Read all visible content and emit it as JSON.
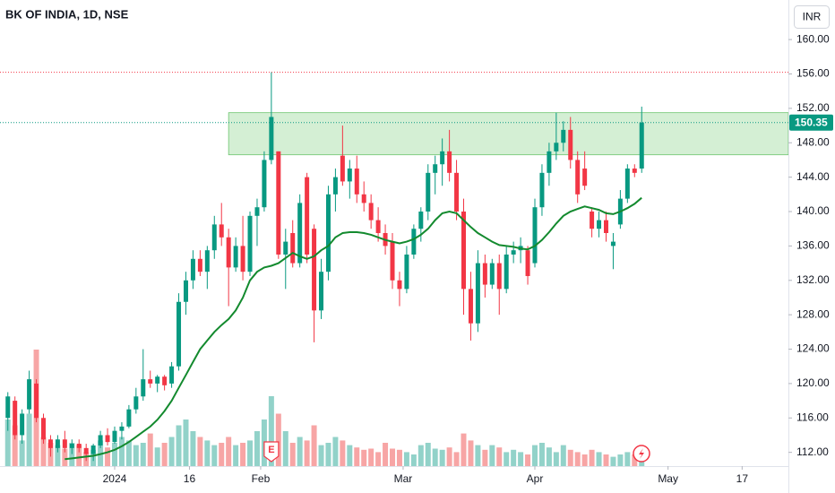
{
  "chart_data": {
    "type": "candlestick",
    "title": "BK OF INDIA, 1D, NSE",
    "currency": "INR",
    "ylim": [
      110.4,
      164.6
    ],
    "yticks": [
      {
        "value": 112,
        "label": "112.00"
      },
      {
        "value": 116,
        "label": "116.00"
      },
      {
        "value": 120,
        "label": "120.00"
      },
      {
        "value": 124,
        "label": "124.00"
      },
      {
        "value": 128,
        "label": "128.00"
      },
      {
        "value": 132,
        "label": "132.00"
      },
      {
        "value": 136,
        "label": "136.00"
      },
      {
        "value": 140,
        "label": "140.00"
      },
      {
        "value": 144,
        "label": "144.00"
      },
      {
        "value": 148,
        "label": "148.00"
      },
      {
        "value": 152,
        "label": "152.00"
      },
      {
        "value": 156,
        "label": "156.00"
      },
      {
        "value": 160,
        "label": "160.00"
      }
    ],
    "xlim": [
      -1.1,
      109.6
    ],
    "xticks": [
      {
        "value": 15,
        "label": "2024"
      },
      {
        "value": 25.5,
        "label": "16"
      },
      {
        "value": 35.5,
        "label": "Feb"
      },
      {
        "value": 55.5,
        "label": "Mar"
      },
      {
        "value": 74,
        "label": "Apr"
      },
      {
        "value": 92.7,
        "label": "May"
      },
      {
        "value": 103.1,
        "label": "17"
      }
    ],
    "grid": false,
    "up_color": "#089981",
    "down_color": "#f23645",
    "volume_up_color": "#92d2c9",
    "volume_down_color": "#f7a5a5",
    "ma_color": "#138a2e",
    "zone_color": "#b7e4b8",
    "open": [
      116,
      118,
      114,
      117,
      120,
      116,
      113.5,
      112.5,
      113.5,
      112.5,
      113,
      112.5,
      111.8,
      112.8,
      114,
      113.2,
      114.5,
      115,
      117,
      118.5,
      120.5,
      120,
      120.8,
      120,
      122,
      129.5,
      132,
      134.5,
      133,
      135.5,
      138.5,
      137,
      133.5,
      136,
      133,
      139.5,
      140.5,
      146,
      147,
      135,
      137.5,
      134,
      144,
      138,
      128.5,
      133,
      142,
      146.5,
      143.5,
      145,
      142,
      141,
      139,
      137.5,
      136.5,
      132,
      131,
      135,
      138,
      140,
      144.5,
      145.5,
      147,
      144.5,
      140,
      131,
      127,
      134,
      131.5,
      134,
      131,
      135,
      135.5,
      135.5,
      134,
      140.5,
      144.5,
      147,
      148,
      149.5,
      146,
      145,
      140,
      138,
      139,
      136,
      138.5,
      141.5,
      145,
      145
    ],
    "high": [
      119,
      118.5,
      117,
      121.5,
      120.5,
      116.5,
      114,
      114,
      114.5,
      113.5,
      113.5,
      113,
      113,
      114.5,
      114.8,
      115,
      115.5,
      117.5,
      119.5,
      124,
      121.5,
      121,
      121,
      122.5,
      130.5,
      133,
      135.5,
      135.5,
      136,
      139.5,
      141,
      138,
      137,
      139.5,
      140,
      141.5,
      147,
      156.2,
      147,
      138,
      139,
      142,
      144.5,
      138.5,
      134.5,
      143,
      145,
      150,
      146,
      146.5,
      143.5,
      142,
      140.5,
      138.5,
      137.5,
      133,
      136,
      138.5,
      140.5,
      145.5,
      146.5,
      148.5,
      149.5,
      146,
      141.5,
      133,
      135.5,
      135,
      134.5,
      135,
      136,
      136.5,
      137,
      136,
      141.5,
      145.5,
      148,
      151.5,
      150.5,
      151,
      147,
      147,
      140.5,
      140,
      140,
      137.5,
      142.5,
      145.5,
      145.5,
      152.2
    ],
    "low": [
      114.5,
      113.5,
      113,
      116.5,
      115.5,
      113,
      111.5,
      112,
      112,
      111.8,
      112,
      111,
      111,
      112.5,
      112.8,
      113,
      113.5,
      114.8,
      116.5,
      118,
      119.5,
      119,
      119.2,
      119.5,
      121.5,
      128,
      131,
      132.5,
      131,
      134.5,
      136,
      129,
      133,
      132,
      132.5,
      136,
      140,
      145.5,
      134.5,
      131,
      133.5,
      133.5,
      134,
      124.8,
      127.5,
      132,
      140,
      143,
      141.5,
      141,
      140,
      138,
      136.5,
      135,
      131,
      129,
      130.5,
      134.5,
      136.5,
      139,
      142,
      143,
      143.5,
      139,
      128,
      125,
      126,
      130,
      131,
      128,
      130.5,
      134,
      134,
      131.5,
      133.5,
      139.5,
      143,
      146,
      147,
      145,
      141,
      142.5,
      137,
      137,
      136.5,
      133.3,
      138,
      141,
      144,
      144.5
    ],
    "close": [
      118.5,
      114,
      116.5,
      120.5,
      116,
      113.5,
      112.5,
      113.5,
      112.5,
      113,
      112.5,
      111.8,
      112.8,
      114,
      113.2,
      114.5,
      115,
      117,
      118.5,
      120.5,
      120,
      120.8,
      119.8,
      122,
      129.5,
      132,
      134.5,
      133,
      135.5,
      138.5,
      137,
      133.5,
      136,
      133,
      139.5,
      140.5,
      146,
      151,
      135,
      136.5,
      134,
      141,
      135,
      128.5,
      133,
      142,
      144,
      143.5,
      145,
      142,
      141,
      139,
      137.5,
      136,
      132,
      131,
      135,
      138,
      140,
      144.5,
      145.5,
      147,
      144.5,
      140,
      131,
      127,
      134,
      131.5,
      134,
      131,
      135,
      135.5,
      136,
      132.5,
      140.5,
      144.5,
      147,
      148,
      149.5,
      146,
      142,
      143,
      138,
      139,
      137.5,
      136.5,
      141.5,
      145,
      144.5,
      150.35
    ],
    "volume_lim": [
      0,
      100
    ],
    "volume": [
      40,
      35,
      22,
      45,
      100,
      25,
      20,
      18,
      15,
      20,
      18,
      12,
      14,
      22,
      16,
      20,
      25,
      22,
      18,
      20,
      28,
      16,
      20,
      25,
      35,
      40,
      30,
      25,
      22,
      18,
      20,
      25,
      18,
      20,
      22,
      30,
      40,
      60,
      45,
      30,
      20,
      25,
      22,
      35,
      18,
      20,
      25,
      22,
      18,
      16,
      14,
      15,
      12,
      20,
      15,
      14,
      12,
      10,
      18,
      20,
      15,
      14,
      16,
      12,
      28,
      22,
      18,
      14,
      18,
      16,
      12,
      14,
      12,
      10,
      18,
      20,
      16,
      12,
      18,
      14,
      12,
      10,
      14,
      12,
      10,
      8,
      10,
      12,
      10,
      12
    ],
    "ma": [
      null,
      null,
      null,
      null,
      null,
      null,
      null,
      null,
      111.2,
      111.3,
      111.4,
      111.5,
      111.6,
      111.8,
      112,
      112.3,
      112.7,
      113.2,
      113.8,
      114.4,
      115,
      115.8,
      116.8,
      118,
      119.5,
      121,
      122.5,
      124,
      125,
      126,
      126.8,
      127.5,
      128.5,
      130,
      132,
      133,
      133.5,
      133.7,
      134,
      134.6,
      135.2,
      134.8,
      134.5,
      134.8,
      135.5,
      136,
      137,
      137.5,
      137.6,
      137.6,
      137.5,
      137.3,
      137,
      136.7,
      136.5,
      136.3,
      136.5,
      136.8,
      137.3,
      138,
      139,
      139.8,
      140,
      139.8,
      139,
      138.2,
      137.5,
      137,
      136.5,
      136.1,
      136,
      135.9,
      135.7,
      135.6,
      136,
      136.7,
      137.6,
      138.6,
      139.5,
      140,
      140.3,
      140.6,
      140.4,
      140.2,
      139.8,
      139.7,
      140,
      140.4,
      140.9,
      141.6
    ],
    "zone": {
      "start": 31,
      "low": 146.6,
      "high": 151.5
    },
    "high_line": 156.2,
    "last_price": 150.35,
    "earnings": {
      "x": 37,
      "label": "E"
    }
  }
}
